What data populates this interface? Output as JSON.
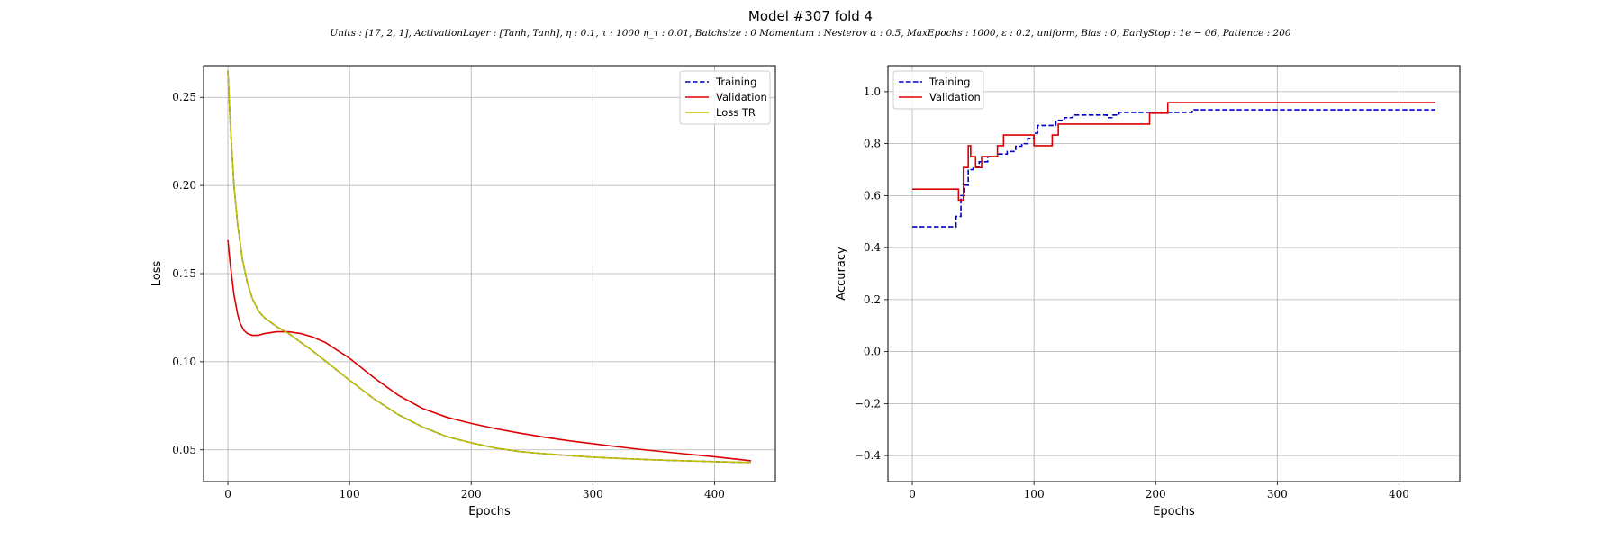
{
  "figure": {
    "title": "Model #307 fold 4",
    "subtitle": "Units : [17, 2, 1], ActivationLayer : [Tanh, Tanh], η : 0.1, τ :  1000 η_τ  : 0.01, Batchsize : 0 Momentum :  Nesterov α : 0.5, MaxEpochs : 1000, ε :  0.2, uniform, Bias : 0, EarlyStop : 1e − 06, Patience : 200"
  },
  "chart_data": [
    {
      "type": "line",
      "xlabel": "Epochs",
      "ylabel": "Loss",
      "xlim": [
        -20,
        450
      ],
      "ylim": [
        0.032,
        0.268
      ],
      "xticks": [
        0,
        100,
        200,
        300,
        400
      ],
      "yticks": [
        0.05,
        0.1,
        0.15,
        0.2,
        0.25
      ],
      "ytick_labels": [
        "0.05",
        "0.10",
        "0.15",
        "0.20",
        "0.25"
      ],
      "grid": true,
      "legend": "top-right",
      "series": [
        {
          "name": "Training",
          "color": "#0000cc",
          "style": "dashed",
          "x": [
            0,
            2,
            5,
            8,
            12,
            16,
            20,
            25,
            30,
            40,
            50,
            60,
            70,
            80,
            90,
            100,
            120,
            140,
            160,
            180,
            200,
            220,
            240,
            260,
            280,
            300,
            320,
            340,
            360,
            380,
            400,
            430
          ],
          "y": [
            0.265,
            0.235,
            0.2,
            0.178,
            0.158,
            0.145,
            0.136,
            0.129,
            0.125,
            0.12,
            0.116,
            0.111,
            0.106,
            0.1005,
            0.095,
            0.0895,
            0.079,
            0.07,
            0.063,
            0.0575,
            0.054,
            0.051,
            0.049,
            0.0478,
            0.0468,
            0.0458,
            0.0452,
            0.0446,
            0.0441,
            0.0437,
            0.0433,
            0.0428
          ]
        },
        {
          "name": "Validation",
          "color": "#dd0000",
          "style": "solid",
          "x": [
            0,
            2,
            5,
            8,
            10,
            13,
            16,
            20,
            25,
            30,
            40,
            50,
            55,
            60,
            70,
            80,
            90,
            100,
            120,
            140,
            160,
            180,
            200,
            220,
            240,
            260,
            280,
            300,
            320,
            340,
            360,
            380,
            400,
            430
          ],
          "y": [
            0.169,
            0.155,
            0.138,
            0.127,
            0.122,
            0.118,
            0.116,
            0.115,
            0.115,
            0.116,
            0.117,
            0.117,
            0.1165,
            0.116,
            0.114,
            0.111,
            0.1065,
            0.102,
            0.091,
            0.081,
            0.0735,
            0.0685,
            0.065,
            0.062,
            0.0595,
            0.0572,
            0.0552,
            0.0535,
            0.0518,
            0.0502,
            0.0488,
            0.0474,
            0.0461,
            0.0438
          ]
        },
        {
          "name": "Loss TR",
          "color": "#bfbf00",
          "style": "solid",
          "x": [
            0,
            2,
            5,
            8,
            12,
            16,
            20,
            25,
            30,
            40,
            50,
            60,
            70,
            80,
            90,
            100,
            120,
            140,
            160,
            180,
            200,
            220,
            240,
            260,
            280,
            300,
            320,
            340,
            360,
            380,
            400,
            430
          ],
          "y": [
            0.265,
            0.235,
            0.2,
            0.178,
            0.158,
            0.145,
            0.136,
            0.129,
            0.125,
            0.12,
            0.116,
            0.111,
            0.106,
            0.1005,
            0.095,
            0.0895,
            0.079,
            0.07,
            0.063,
            0.0575,
            0.054,
            0.051,
            0.049,
            0.0478,
            0.0468,
            0.0458,
            0.0452,
            0.0446,
            0.0441,
            0.0437,
            0.0433,
            0.0428
          ]
        }
      ]
    },
    {
      "type": "line",
      "xlabel": "Epochs",
      "ylabel": "Accuracy",
      "xlim": [
        -20,
        450
      ],
      "ylim": [
        -0.5,
        1.1
      ],
      "xticks": [
        0,
        100,
        200,
        300,
        400
      ],
      "yticks": [
        -0.4,
        -0.2,
        0.0,
        0.2,
        0.4,
        0.6,
        0.8,
        1.0
      ],
      "ytick_labels": [
        "−0.4",
        "−0.2",
        "0.0",
        "0.2",
        "0.4",
        "0.6",
        "0.8",
        "1.0"
      ],
      "grid": true,
      "legend": "top-left",
      "series": [
        {
          "name": "Training",
          "color": "#0000cc",
          "style": "dashed",
          "step": true,
          "x": [
            0,
            33,
            36,
            40,
            43,
            46,
            50,
            55,
            62,
            70,
            78,
            85,
            90,
            95,
            100,
            103,
            108,
            118,
            125,
            132,
            150,
            160,
            165,
            170,
            195,
            230,
            430
          ],
          "y": [
            0.48,
            0.48,
            0.52,
            0.6,
            0.64,
            0.7,
            0.71,
            0.73,
            0.75,
            0.76,
            0.77,
            0.79,
            0.8,
            0.82,
            0.84,
            0.87,
            0.87,
            0.89,
            0.9,
            0.91,
            0.91,
            0.9,
            0.91,
            0.92,
            0.92,
            0.93,
            0.93
          ]
        },
        {
          "name": "Validation",
          "color": "#dd0000",
          "style": "solid",
          "step": true,
          "x": [
            0,
            35,
            38,
            42,
            46,
            48,
            52,
            57,
            60,
            64,
            70,
            75,
            80,
            100,
            115,
            120,
            125,
            150,
            195,
            210,
            430
          ],
          "y": [
            0.625,
            0.625,
            0.583,
            0.708,
            0.792,
            0.75,
            0.708,
            0.75,
            0.75,
            0.75,
            0.792,
            0.833,
            0.833,
            0.792,
            0.833,
            0.875,
            0.875,
            0.875,
            0.917,
            0.958,
            0.958
          ]
        }
      ]
    }
  ]
}
